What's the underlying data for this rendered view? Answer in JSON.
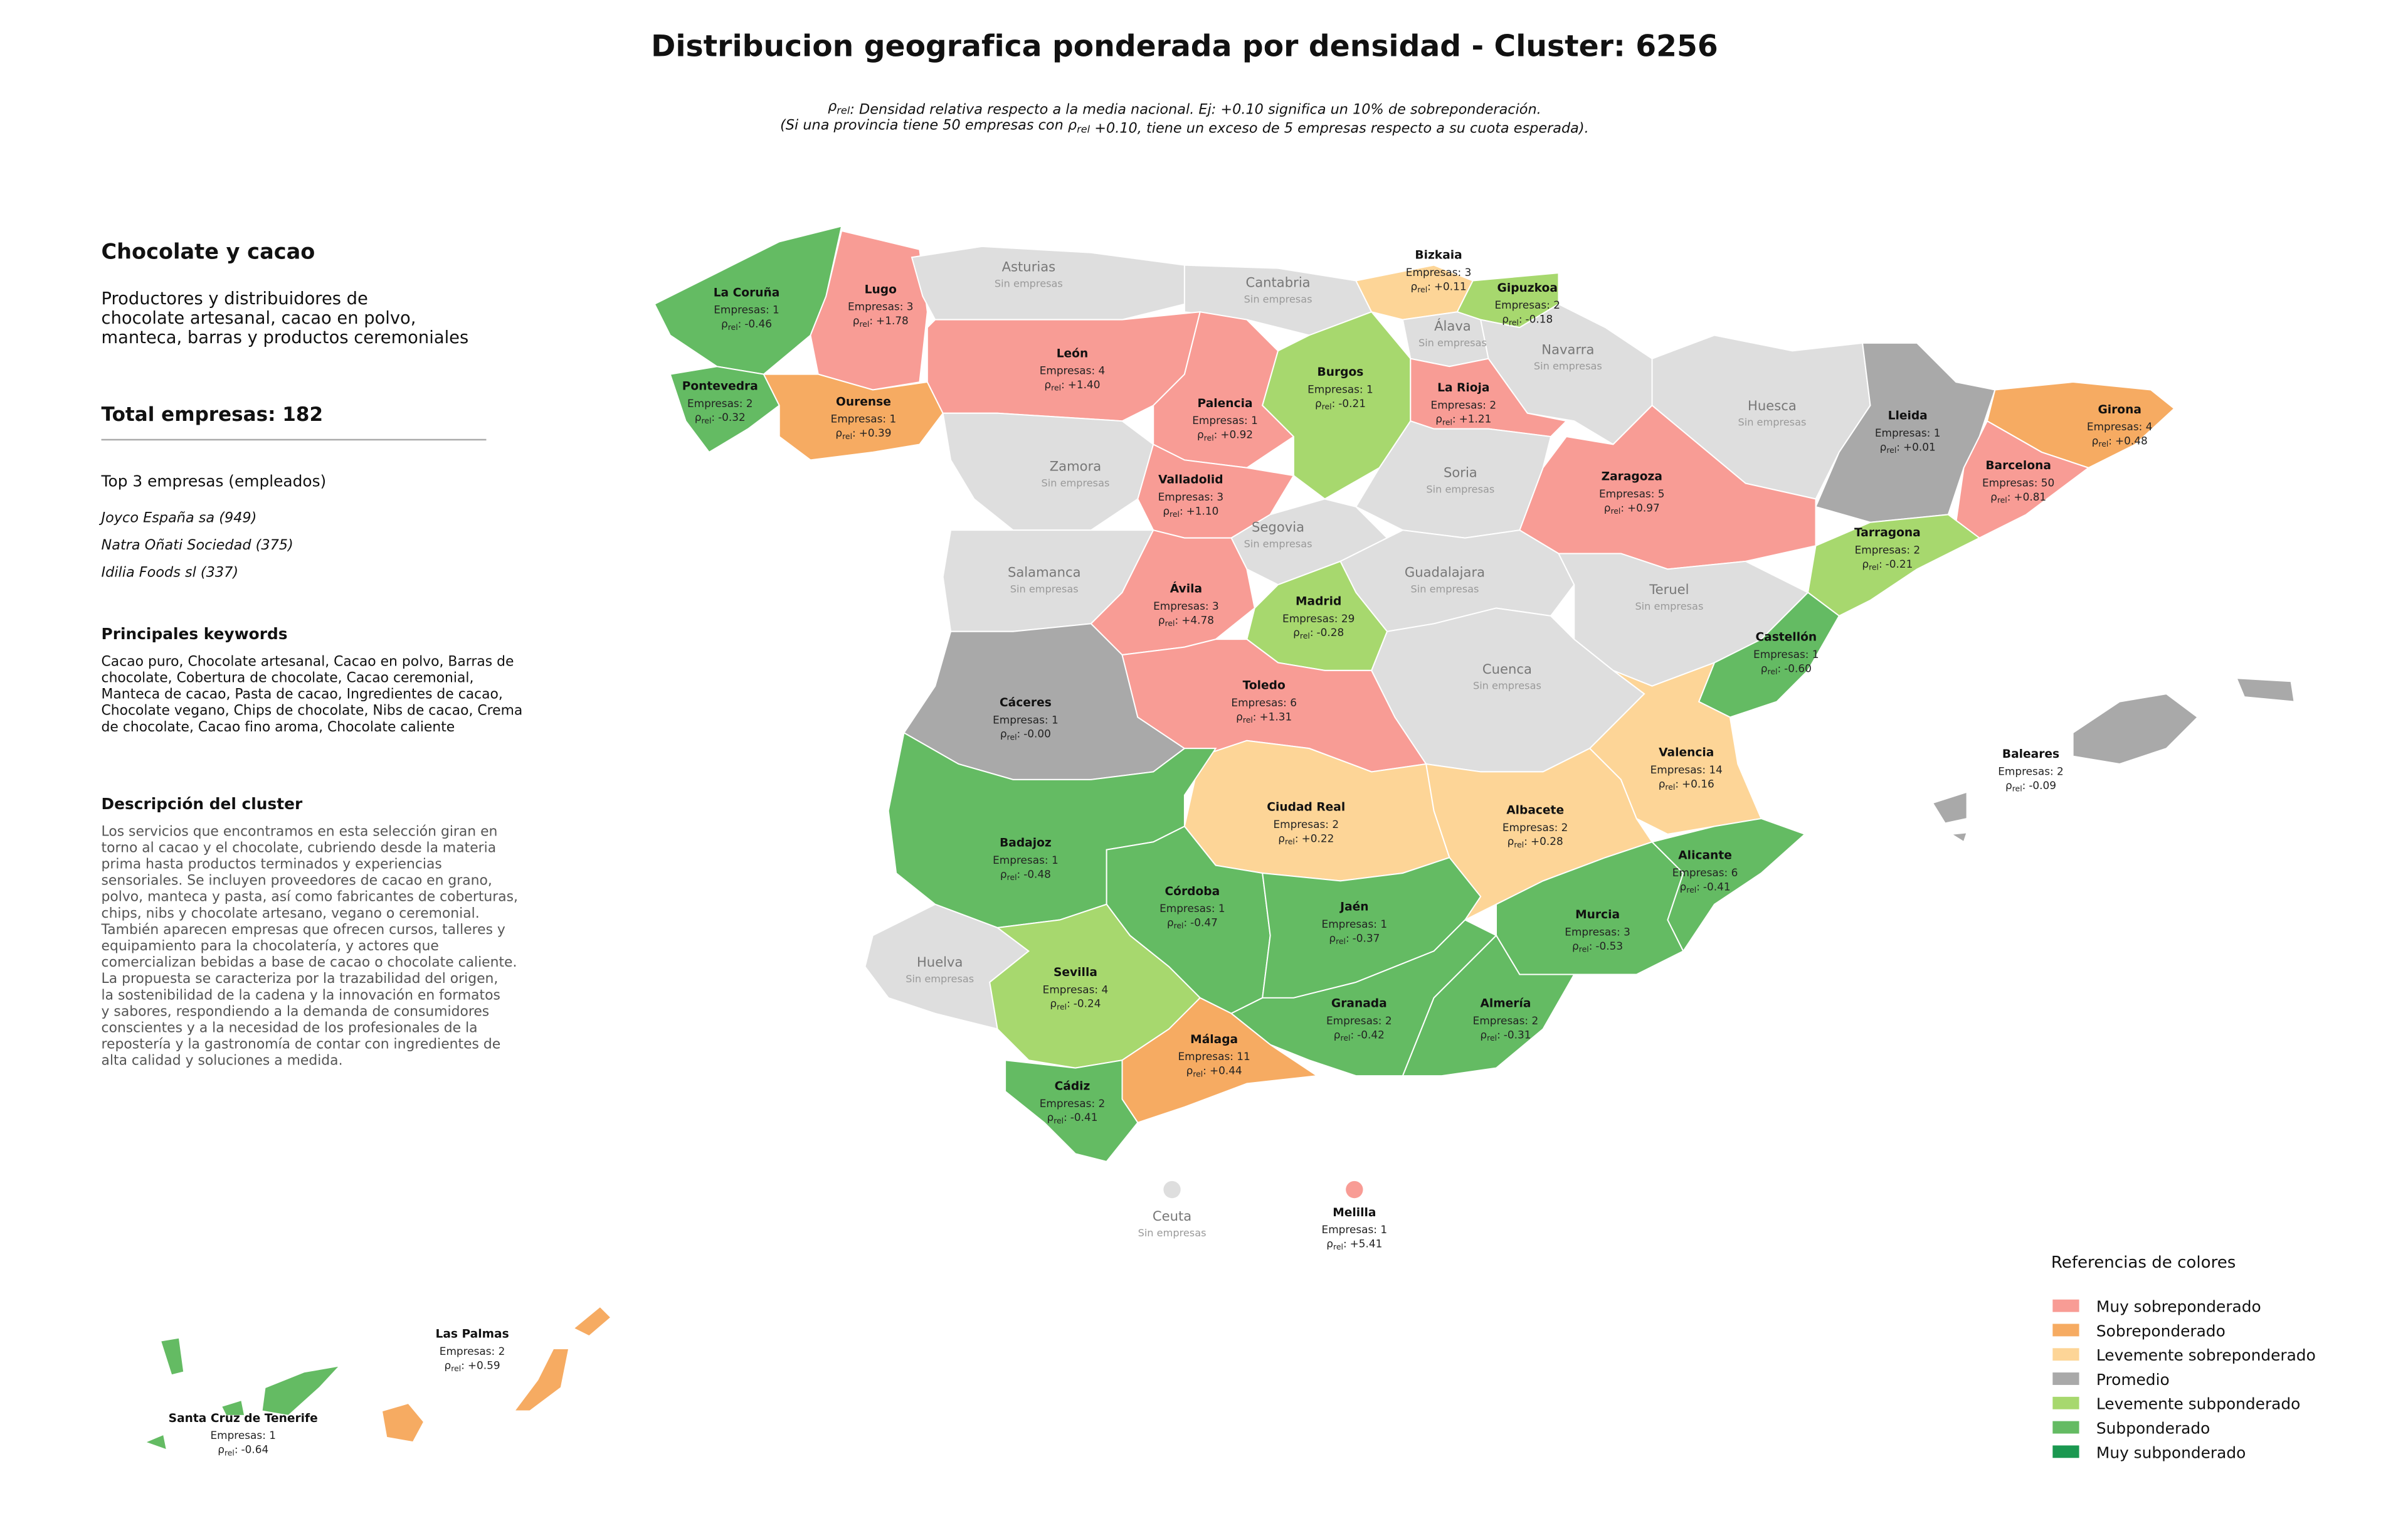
{
  "title": "Distribucion geografica ponderada por densidad - Cluster: 6256",
  "subtitle": {
    "symbol": "ρ",
    "subscript": "rel",
    "line1_after": ": Densidad relativa respecto a la media nacional. Ej: +0.10 significa un 10% de sobreponderación.",
    "line2_before": "(Si una provincia tiene 50 empresas con ",
    "line2_after": " +0.10, tiene un exceso de 5 empresas respecto a su cuota esperada)."
  },
  "sidebar": {
    "heading": "Chocolate y cacao",
    "description": [
      "Productores y distribuidores de",
      "chocolate artesanal, cacao en polvo,",
      "manteca, barras y productos ceremoniales"
    ],
    "total": "Total empresas: 182",
    "top_title": "Top 3 empresas (empleados)",
    "top": [
      "Joyco España sa (949)",
      "Natra Oñati Sociedad (375)",
      "Idilia Foods sl (337)"
    ],
    "keywords_title": "Principales keywords",
    "keywords": [
      "Cacao puro, Chocolate artesanal, Cacao en polvo, Barras de",
      "chocolate, Cobertura de chocolate, Cacao ceremonial,",
      "Manteca de cacao, Pasta de cacao, Ingredientes de cacao,",
      "Chocolate vegano, Chips de chocolate, Nibs de cacao, Crema",
      "de chocolate, Cacao fino aroma, Chocolate caliente"
    ],
    "cluster_title": "Descripción del cluster",
    "cluster_text": [
      "Los servicios que encontramos en esta selección giran en",
      "torno al cacao y el chocolate, cubriendo desde la materia",
      "prima hasta productos terminados y experiencias",
      "sensoriales. Se incluyen proveedores de cacao en grano,",
      "polvo, manteca y pasta, así como fabricantes de coberturas,",
      "chips, nibs y chocolate artesano, vegano o ceremonial.",
      "También aparecen empresas que ofrecen cursos, talleres y",
      "equipamiento para la chocolatería, y actores que",
      "comercializan bebidas a base de cacao o chocolate caliente.",
      "La propuesta se caracteriza por la trazabilidad del origen,",
      "la sostenibilidad de la cadena y la innovación en formatos",
      "y sabores, respondiendo a la demanda de consumidores",
      "conscientes y a la necesidad de los profesionales de la",
      "repostería y la gastronomía de contar con ingredientes de",
      "alta calidad y soluciones a medida."
    ]
  },
  "legend": {
    "title": "Referencias de colores",
    "items": [
      {
        "label": "Muy sobreponderado",
        "color": "#f89c95"
      },
      {
        "label": "Sobreponderado",
        "color": "#f6ab62"
      },
      {
        "label": "Levemente sobreponderado",
        "color": "#fdd597"
      },
      {
        "label": "Promedio",
        "color": "#a9a9a9"
      },
      {
        "label": "Levemente subponderado",
        "color": "#a7d86e"
      },
      {
        "label": "Subponderado",
        "color": "#64bb63"
      },
      {
        "label": "Muy subponderado",
        "color": "#1a9850"
      }
    ]
  },
  "map": {
    "rho_symbol": "ρ",
    "rho_subscript": "rel",
    "rho_colon": ":",
    "no_companies": "Sin empresas",
    "empty_color": "#dedede",
    "provinces": [
      {
        "name": "La Coruña",
        "color": "#64bb63",
        "companies": "Empresas: 1",
        "rho": "-0.46"
      },
      {
        "name": "Lugo",
        "color": "#f89c95",
        "companies": "Empresas: 3",
        "rho": "+1.78"
      },
      {
        "name": "Pontevedra",
        "color": "#64bb63",
        "companies": "Empresas: 2",
        "rho": "-0.32"
      },
      {
        "name": "Ourense",
        "color": "#f6ab62",
        "companies": "Empresas: 1",
        "rho": "+0.39"
      },
      {
        "name": "Asturias"
      },
      {
        "name": "Cantabria"
      },
      {
        "name": "Bizkaia",
        "color": "#fdd597",
        "companies": "Empresas: 3",
        "rho": "+0.11"
      },
      {
        "name": "Gipuzkoa",
        "color": "#a7d86e",
        "companies": "Empresas: 2",
        "rho": "-0.18"
      },
      {
        "name": "Álava"
      },
      {
        "name": "Navarra"
      },
      {
        "name": "León",
        "color": "#f89c95",
        "companies": "Empresas: 4",
        "rho": "+1.40"
      },
      {
        "name": "Palencia",
        "color": "#f89c95",
        "companies": "Empresas: 1",
        "rho": "+0.92"
      },
      {
        "name": "Burgos",
        "color": "#a7d86e",
        "companies": "Empresas: 1",
        "rho": "-0.21"
      },
      {
        "name": "La Rioja",
        "color": "#f89c95",
        "companies": "Empresas: 2",
        "rho": "+1.21"
      },
      {
        "name": "Huesca"
      },
      {
        "name": "Lleida",
        "color": "#a9a9a9",
        "companies": "Empresas: 1",
        "rho": "+0.01"
      },
      {
        "name": "Girona",
        "color": "#f6ab62",
        "companies": "Empresas: 4",
        "rho": "+0.48"
      },
      {
        "name": "Barcelona",
        "color": "#f89c95",
        "companies": "Empresas: 50",
        "rho": "+0.81"
      },
      {
        "name": "Zaragoza",
        "color": "#f89c95",
        "companies": "Empresas: 5",
        "rho": "+0.97"
      },
      {
        "name": "Tarragona",
        "color": "#a7d86e",
        "companies": "Empresas: 2",
        "rho": "-0.21"
      },
      {
        "name": "Zamora"
      },
      {
        "name": "Valladolid",
        "color": "#f89c95",
        "companies": "Empresas: 3",
        "rho": "+1.10"
      },
      {
        "name": "Soria"
      },
      {
        "name": "Segovia"
      },
      {
        "name": "Salamanca"
      },
      {
        "name": "Ávila",
        "color": "#f89c95",
        "companies": "Empresas: 3",
        "rho": "+4.78"
      },
      {
        "name": "Guadalajara"
      },
      {
        "name": "Madrid",
        "color": "#a7d86e",
        "companies": "Empresas: 29",
        "rho": "-0.28"
      },
      {
        "name": "Teruel"
      },
      {
        "name": "Castellón",
        "color": "#64bb63",
        "companies": "Empresas: 1",
        "rho": "-0.60"
      },
      {
        "name": "Cáceres",
        "color": "#a9a9a9",
        "companies": "Empresas: 1",
        "rho": "-0.00"
      },
      {
        "name": "Toledo",
        "color": "#f89c95",
        "companies": "Empresas: 6",
        "rho": "+1.31"
      },
      {
        "name": "Cuenca"
      },
      {
        "name": "Valencia",
        "color": "#fdd597",
        "companies": "Empresas: 14",
        "rho": "+0.16"
      },
      {
        "name": "Ciudad Real",
        "color": "#fdd597",
        "companies": "Empresas: 2",
        "rho": "+0.22"
      },
      {
        "name": "Albacete",
        "color": "#fdd597",
        "companies": "Empresas: 2",
        "rho": "+0.28"
      },
      {
        "name": "Badajoz",
        "color": "#64bb63",
        "companies": "Empresas: 1",
        "rho": "-0.48"
      },
      {
        "name": "Córdoba",
        "color": "#64bb63",
        "companies": "Empresas: 1",
        "rho": "-0.47"
      },
      {
        "name": "Jaén",
        "color": "#64bb63",
        "companies": "Empresas: 1",
        "rho": "-0.37"
      },
      {
        "name": "Murcia",
        "color": "#64bb63",
        "companies": "Empresas: 3",
        "rho": "-0.53"
      },
      {
        "name": "Alicante",
        "color": "#64bb63",
        "companies": "Empresas: 6",
        "rho": "-0.41"
      },
      {
        "name": "Huelva"
      },
      {
        "name": "Sevilla",
        "color": "#a7d86e",
        "companies": "Empresas: 4",
        "rho": "-0.24"
      },
      {
        "name": "Granada",
        "color": "#64bb63",
        "companies": "Empresas: 2",
        "rho": "-0.42"
      },
      {
        "name": "Almería",
        "color": "#64bb63",
        "companies": "Empresas: 2",
        "rho": "-0.31"
      },
      {
        "name": "Málaga",
        "color": "#f6ab62",
        "companies": "Empresas: 11",
        "rho": "+0.44"
      },
      {
        "name": "Cádiz",
        "color": "#64bb63",
        "companies": "Empresas: 2",
        "rho": "-0.41"
      },
      {
        "name": "Baleares",
        "color": "#a9a9a9",
        "companies": "Empresas: 2",
        "rho": "-0.09"
      },
      {
        "name": "Ceuta"
      },
      {
        "name": "Melilla",
        "color": "#f89c95",
        "companies": "Empresas: 1",
        "rho": "+5.41"
      },
      {
        "name": "Las Palmas",
        "color": "#f6ab62",
        "companies": "Empresas: 2",
        "rho": "+0.59"
      },
      {
        "name": "Santa Cruz de Tenerife",
        "color": "#64bb63",
        "companies": "Empresas: 1",
        "rho": "-0.64"
      }
    ]
  }
}
